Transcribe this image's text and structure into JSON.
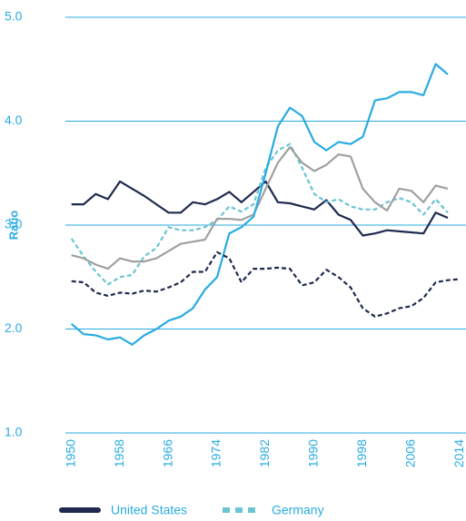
{
  "chart_data": {
    "type": "line",
    "ylabel": "Ratio",
    "x": [
      1950,
      1952,
      1954,
      1956,
      1958,
      1960,
      1962,
      1964,
      1966,
      1968,
      1970,
      1972,
      1974,
      1976,
      1978,
      1980,
      1982,
      1984,
      1986,
      1988,
      1990,
      1992,
      1994,
      1996,
      1998,
      2000,
      2002,
      2004,
      2006,
      2008,
      2010,
      2012,
      2014
    ],
    "xlim": [
      1949,
      2015
    ],
    "xticks": [
      1950,
      1958,
      1966,
      1974,
      1982,
      1990,
      1998,
      2006,
      2014
    ],
    "ylim": [
      1.0,
      5.0
    ],
    "yticks": [
      {
        "value": 1,
        "label": "1.0"
      },
      {
        "value": 2,
        "label": "2.0"
      },
      {
        "value": 3,
        "label": "3.0"
      },
      {
        "value": 4,
        "label": "4.0"
      },
      {
        "value": 5,
        "label": "5.0"
      }
    ],
    "grid": true,
    "series": [
      {
        "name": "United States",
        "color": "#1f2a4e",
        "dash": false,
        "values": [
          3.2,
          3.2,
          3.3,
          3.25,
          3.42,
          3.35,
          3.28,
          3.2,
          3.12,
          3.12,
          3.22,
          3.2,
          3.25,
          3.32,
          3.22,
          3.32,
          3.42,
          3.22,
          3.21,
          3.18,
          3.15,
          3.24,
          3.1,
          3.05,
          2.9,
          2.92,
          2.95,
          2.94,
          2.93,
          2.92,
          3.12,
          3.07,
          null
        ]
      },
      {
        "name": "Germany",
        "color": "#6cc5d3",
        "dash": true,
        "values": [
          2.87,
          2.7,
          2.55,
          2.43,
          2.5,
          2.52,
          2.7,
          2.78,
          2.98,
          2.95,
          2.95,
          2.98,
          3.05,
          3.18,
          3.13,
          3.2,
          3.55,
          3.72,
          3.78,
          3.55,
          3.3,
          3.22,
          3.25,
          3.18,
          3.15,
          3.15,
          3.22,
          3.26,
          3.22,
          3.1,
          3.25,
          3.12,
          null
        ]
      },
      {
        "color": "#a0a0a0",
        "dash": false,
        "values": [
          2.71,
          2.68,
          2.62,
          2.58,
          2.68,
          2.65,
          2.65,
          2.68,
          2.75,
          2.82,
          2.84,
          2.86,
          3.06,
          3.06,
          3.05,
          3.1,
          3.35,
          3.6,
          3.75,
          3.6,
          3.52,
          3.58,
          3.68,
          3.66,
          3.35,
          3.22,
          3.14,
          3.35,
          3.33,
          3.22,
          3.38,
          3.35,
          null
        ]
      },
      {
        "color": "#29abe2",
        "dash": false,
        "values": [
          2.05,
          1.95,
          1.94,
          1.9,
          1.92,
          1.85,
          1.94,
          2.0,
          2.08,
          2.12,
          2.2,
          2.38,
          2.5,
          2.92,
          2.98,
          3.08,
          3.5,
          3.95,
          4.13,
          4.05,
          3.8,
          3.72,
          3.8,
          3.78,
          3.85,
          4.2,
          4.22,
          4.28,
          4.28,
          4.25,
          4.55,
          4.45,
          null
        ]
      },
      {
        "color": "#1f2a4e",
        "dash": true,
        "values": [
          2.46,
          2.45,
          2.35,
          2.32,
          2.35,
          2.34,
          2.37,
          2.36,
          2.4,
          2.45,
          2.55,
          2.55,
          2.74,
          2.68,
          2.45,
          2.58,
          2.58,
          2.59,
          2.58,
          2.42,
          2.45,
          2.57,
          2.5,
          2.4,
          2.2,
          2.12,
          2.15,
          2.2,
          2.22,
          2.3,
          2.45,
          2.47,
          2.48
        ]
      }
    ]
  }
}
